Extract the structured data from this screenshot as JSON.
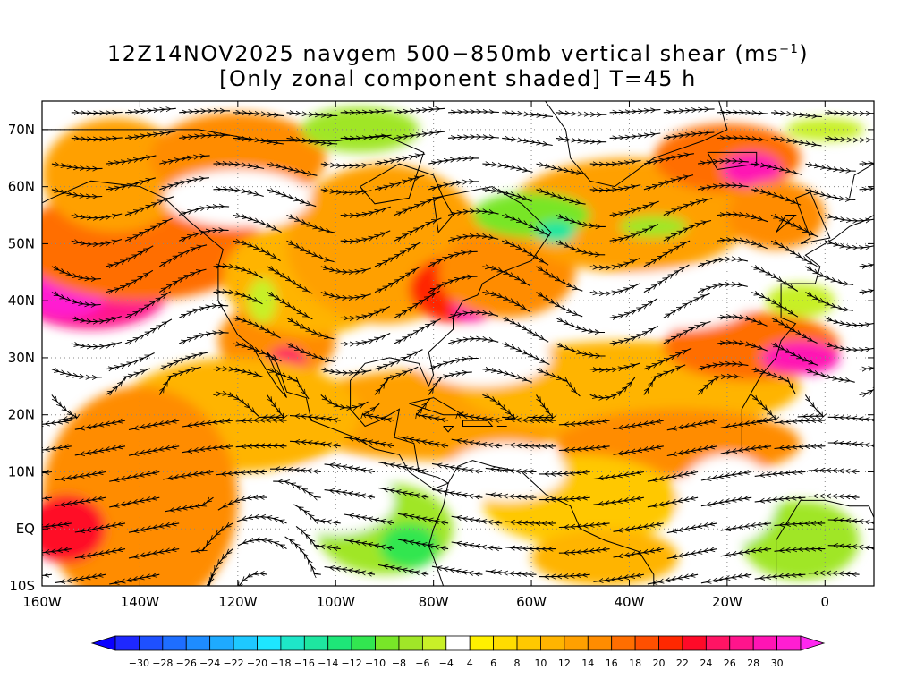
{
  "title": {
    "line1_pre": "12Z14NOV2025 navgem 500−850mb vertical shear (ms",
    "line1_sup": "−1",
    "line1_post": ")",
    "line2": "[Only zonal component shaded] T=45 h"
  },
  "map": {
    "lon_range": [
      -160,
      10
    ],
    "lat_range": [
      -10,
      75
    ],
    "lon_ticks": [
      {
        "lon": -160,
        "label": "160W"
      },
      {
        "lon": -140,
        "label": "140W"
      },
      {
        "lon": -120,
        "label": "120W"
      },
      {
        "lon": -100,
        "label": "100W"
      },
      {
        "lon": -80,
        "label": "80W"
      },
      {
        "lon": -60,
        "label": "60W"
      },
      {
        "lon": -40,
        "label": "40W"
      },
      {
        "lon": -20,
        "label": "20W"
      },
      {
        "lon": 0,
        "label": "0"
      }
    ],
    "lat_ticks": [
      {
        "lat": -10,
        "label": "10S"
      },
      {
        "lat": 0,
        "label": "EQ"
      },
      {
        "lat": 10,
        "label": "10N"
      },
      {
        "lat": 20,
        "label": "20N"
      },
      {
        "lat": 30,
        "label": "30N"
      },
      {
        "lat": 40,
        "label": "40N"
      },
      {
        "lat": 50,
        "label": "50N"
      },
      {
        "lat": 60,
        "label": "60N"
      },
      {
        "lat": 70,
        "label": "70N"
      }
    ],
    "gridlines": "dotted",
    "shading_blobs": [
      {
        "lon": -150,
        "lat": 42,
        "rlon": 16,
        "rlat": 7,
        "value": 26
      },
      {
        "lon": -140,
        "lat": 47,
        "rlon": 9,
        "rlat": 3,
        "value": 28
      },
      {
        "lon": -155,
        "lat": 41,
        "rlon": 8,
        "rlat": 4,
        "value": 30
      },
      {
        "lon": -140,
        "lat": 50,
        "rlon": 25,
        "rlat": 10,
        "value": 16
      },
      {
        "lon": -145,
        "lat": 62,
        "rlon": 15,
        "rlat": 10,
        "value": 12
      },
      {
        "lon": -120,
        "lat": 65,
        "rlon": 18,
        "rlat": 8,
        "value": 14
      },
      {
        "lon": -112,
        "lat": 33,
        "rlon": 12,
        "rlat": 7,
        "value": 14
      },
      {
        "lon": -110,
        "lat": 29,
        "rlon": 4,
        "rlat": 3,
        "value": 24
      },
      {
        "lon": -105,
        "lat": 44,
        "rlon": 18,
        "rlat": 10,
        "value": 10
      },
      {
        "lon": -90,
        "lat": 50,
        "rlon": 20,
        "rlat": 14,
        "value": 12
      },
      {
        "lon": -75,
        "lat": 42,
        "rlon": 10,
        "rlat": 6,
        "value": 20
      },
      {
        "lon": -72,
        "lat": 39,
        "rlon": 4,
        "rlat": 3,
        "value": 28
      },
      {
        "lon": -65,
        "lat": 45,
        "rlon": 14,
        "rlat": 8,
        "value": 14
      },
      {
        "lon": -40,
        "lat": 55,
        "rlon": 25,
        "rlat": 10,
        "value": 12
      },
      {
        "lon": -20,
        "lat": 65,
        "rlon": 15,
        "rlat": 6,
        "value": 16
      },
      {
        "lon": -15,
        "lat": 63,
        "rlon": 6,
        "rlat": 3,
        "value": 28
      },
      {
        "lon": -10,
        "lat": 55,
        "rlon": 10,
        "rlat": 6,
        "value": 14
      },
      {
        "lon": -80,
        "lat": 20,
        "rlon": 30,
        "rlat": 8,
        "value": 12
      },
      {
        "lon": -120,
        "lat": 20,
        "rlon": 25,
        "rlat": 10,
        "value": 10
      },
      {
        "lon": -140,
        "lat": 5,
        "rlon": 20,
        "rlat": 20,
        "value": 14
      },
      {
        "lon": -155,
        "lat": 0,
        "rlon": 8,
        "rlat": 6,
        "value": 22
      },
      {
        "lon": -40,
        "lat": 25,
        "rlon": 35,
        "rlat": 8,
        "value": 10
      },
      {
        "lon": -15,
        "lat": 32,
        "rlon": 18,
        "rlat": 6,
        "value": 16
      },
      {
        "lon": -5,
        "lat": 30,
        "rlon": 8,
        "rlat": 3,
        "value": 28
      },
      {
        "lon": -30,
        "lat": 15,
        "rlon": 25,
        "rlat": 6,
        "value": 14
      },
      {
        "lon": -50,
        "lat": 5,
        "rlon": 20,
        "rlat": 8,
        "value": 8
      },
      {
        "lon": -45,
        "lat": -5,
        "rlon": 15,
        "rlat": 5,
        "value": 10
      },
      {
        "lon": -90,
        "lat": 0,
        "rlon": 14,
        "rlat": 8,
        "value": -8
      },
      {
        "lon": -85,
        "lat": -3,
        "rlon": 6,
        "rlat": 4,
        "value": -12
      },
      {
        "lon": -5,
        "lat": -2,
        "rlon": 12,
        "rlat": 7,
        "value": -8
      },
      {
        "lon": -95,
        "lat": 70,
        "rlon": 12,
        "rlat": 4,
        "value": -8
      },
      {
        "lon": -60,
        "lat": 55,
        "rlon": 12,
        "rlat": 4,
        "value": -10
      },
      {
        "lon": -55,
        "lat": 52,
        "rlon": 4,
        "rlat": 2,
        "value": -16
      },
      {
        "lon": -35,
        "lat": 53,
        "rlon": 7,
        "rlat": 2,
        "value": -8
      },
      {
        "lon": -5,
        "lat": 40,
        "rlon": 7,
        "rlat": 3,
        "value": -6
      },
      {
        "lon": -115,
        "lat": 40,
        "rlon": 3,
        "rlat": 4,
        "value": -6
      },
      {
        "lon": 0,
        "lat": 70,
        "rlon": 8,
        "rlat": 2,
        "value": -6
      },
      {
        "lon": -120,
        "lat": 58,
        "rlon": 15,
        "rlat": 5,
        "value": 2
      },
      {
        "lon": -70,
        "lat": 30,
        "rlon": 14,
        "rlat": 5,
        "value": 2
      },
      {
        "lon": -30,
        "lat": 40,
        "rlon": 15,
        "rlat": 5,
        "value": 2
      },
      {
        "lon": -100,
        "lat": 5,
        "rlon": 12,
        "rlat": 6,
        "value": 2
      },
      {
        "lon": -65,
        "lat": 10,
        "rlon": 12,
        "rlat": 5,
        "value": 2
      },
      {
        "lon": -20,
        "lat": 5,
        "rlon": 10,
        "rlat": 8,
        "value": 2
      }
    ]
  },
  "colorbar": {
    "levels": [
      "−30",
      "−28",
      "−26",
      "−24",
      "−22",
      "−20",
      "−18",
      "−16",
      "−14",
      "−12",
      "−10",
      "−8",
      "−6",
      "−4",
      "4",
      "6",
      "8",
      "10",
      "12",
      "14",
      "16",
      "18",
      "20",
      "22",
      "24",
      "26",
      "28",
      "30"
    ],
    "colors": [
      "#1e28ff",
      "#1e50ff",
      "#1e6eff",
      "#1e8cff",
      "#1eaaff",
      "#1ec8ff",
      "#1ee6ff",
      "#1ee6c8",
      "#1ee6a0",
      "#1ee678",
      "#32e650",
      "#78e628",
      "#a0e628",
      "#c8f028",
      "#ffffff",
      "#fff000",
      "#ffdc00",
      "#ffc800",
      "#ffb400",
      "#ffa000",
      "#ff8c00",
      "#ff6e00",
      "#ff5000",
      "#ff2800",
      "#ff0a28",
      "#ff1464",
      "#ff148c",
      "#ff14b4",
      "#ff1ed2"
    ],
    "under_color": "#0a00ff",
    "over_color": "#ff28f0"
  }
}
